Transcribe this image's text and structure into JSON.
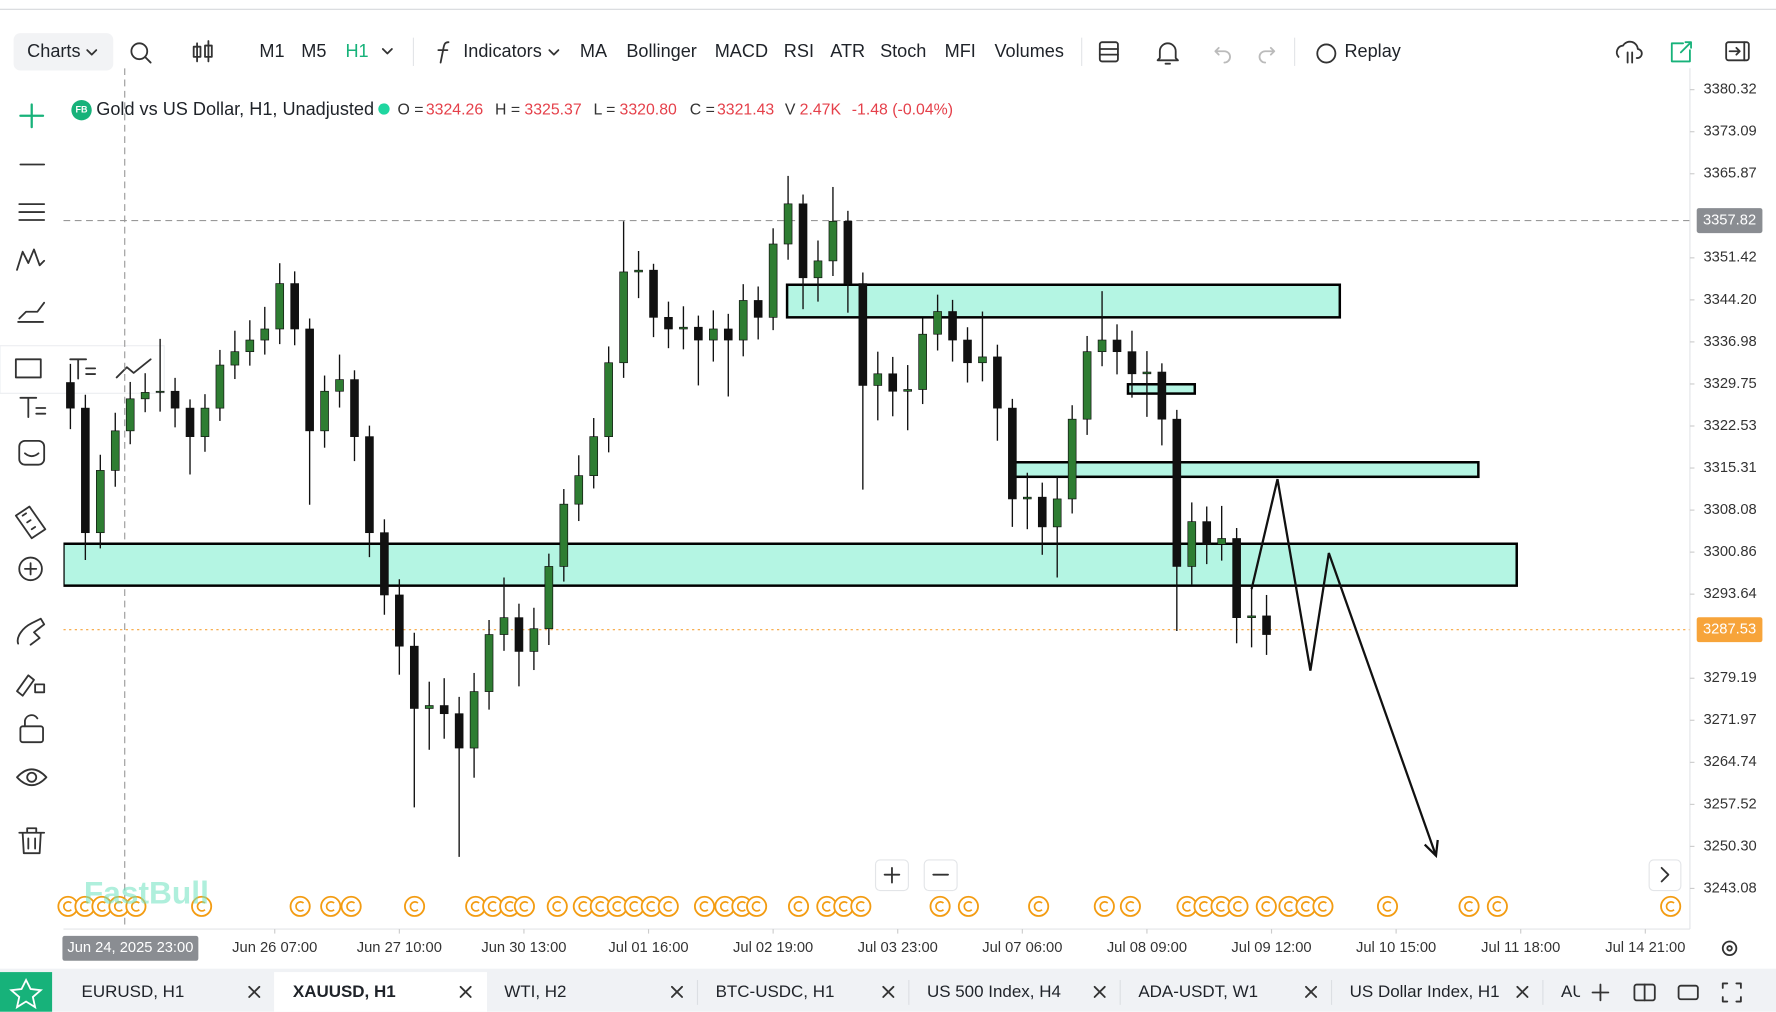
{
  "toolbar": {
    "charts": "Charts",
    "intervals": [
      "M1",
      "M5",
      "H1"
    ],
    "indicators": "Indicators",
    "studies": [
      "MA",
      "Bollinger",
      "MACD",
      "RSI",
      "ATR",
      "Stoch",
      "MFI",
      "Volumes"
    ],
    "replay": "Replay"
  },
  "legend": {
    "badge": "FB",
    "symbol": "Gold vs US Dollar, H1, Unadjusted",
    "o_label": "O =",
    "o": "3324.26",
    "h_label": "H =",
    "h": "3325.37",
    "l_label": "L =",
    "l": "3320.80",
    "c_label": "C =",
    "c": "3321.43",
    "v_label": "V",
    "v": "2.47K",
    "change": "-1.48 (-0.04%)"
  },
  "watermark": "FastBull",
  "chart_data": {
    "type": "candlestick",
    "up_color": "#2e7d32",
    "down_color": "#111111",
    "x": [
      -12,
      -9,
      -6,
      -3,
      0,
      3,
      6,
      9,
      12,
      15,
      18,
      21,
      24,
      27,
      30,
      33,
      36,
      39,
      42,
      45,
      48,
      51,
      54,
      57,
      60,
      63,
      66,
      69,
      72,
      75,
      78,
      81,
      84,
      87,
      90,
      93,
      96,
      99,
      102,
      105,
      108,
      111,
      114,
      117,
      120,
      123,
      126,
      129,
      132,
      135,
      138,
      141,
      144,
      147,
      150,
      153,
      156,
      159,
      162,
      165,
      168,
      171,
      174,
      177,
      180,
      183,
      186,
      189,
      192,
      195,
      198,
      201,
      204,
      207,
      210,
      213,
      216,
      219,
      222,
      225,
      228
    ],
    "open": [
      3330.0,
      3325.6,
      3304.2,
      3314.9,
      3321.7,
      3327.2,
      3328.3,
      3328.5,
      3325.6,
      3320.7,
      3325.6,
      3333.0,
      3335.3,
      3337.3,
      3339.2,
      3347.0,
      3339.2,
      3321.7,
      3328.5,
      3330.5,
      3320.7,
      3304.2,
      3293.5,
      3284.7,
      3274.0,
      3274.5,
      3273.1,
      3267.2,
      3276.9,
      3286.7,
      3289.6,
      3283.8,
      3287.7,
      3298.4,
      3309.1,
      3314.0,
      3320.7,
      3333.4,
      3349.0,
      3349.3,
      3341.2,
      3339.2,
      3339.5,
      3337.3,
      3339.2,
      3337.3,
      3344.1,
      3341.2,
      3353.8,
      3360.7,
      3348.0,
      3350.9,
      3357.7,
      3347.0,
      3329.5,
      3331.5,
      3328.5,
      3328.8,
      3338.3,
      3342.2,
      3337.3,
      3333.4,
      3334.4,
      3325.6,
      3310.0,
      3310.3,
      3305.2,
      3310.0,
      3323.7,
      3335.3,
      3337.3,
      3335.3,
      3331.5,
      3331.8,
      3323.7,
      3298.4,
      3306.1,
      3302.2,
      3303.2,
      3289.6,
      3289.9
    ],
    "high": [
      3333.2,
      3327.9,
      3317.6,
      3324.8,
      3330.1,
      3331.6,
      3337.5,
      3330.8,
      3327.1,
      3328.0,
      3335.6,
      3338.9,
      3340.7,
      3343.0,
      3350.5,
      3349.1,
      3341.0,
      3331.2,
      3334.8,
      3332.1,
      3322.6,
      3306.5,
      3296.2,
      3287.0,
      3278.6,
      3279.2,
      3276.0,
      3280.1,
      3289.2,
      3296.5,
      3292.0,
      3291.3,
      3300.6,
      3311.7,
      3317.5,
      3323.9,
      3336.2,
      3357.7,
      3352.6,
      3350.4,
      3343.9,
      3343.1,
      3341.5,
      3342.4,
      3341.8,
      3346.9,
      3346.5,
      3356.5,
      3365.5,
      3362.3,
      3354.4,
      3363.6,
      3359.5,
      3348.9,
      3335.3,
      3334.4,
      3333.0,
      3341.0,
      3345.1,
      3344.2,
      3339.5,
      3342.2,
      3336.5,
      3327.2,
      3314.5,
      3312.8,
      3313.8,
      3326.1,
      3338.0,
      3345.7,
      3340.0,
      3338.9,
      3335.4,
      3333.3,
      3325.3,
      3309.4,
      3308.7,
      3308.8,
      3305.0,
      3294.6,
      3293.5
    ],
    "low": [
      3322.0,
      3299.5,
      3301.5,
      3312.1,
      3319.4,
      3324.9,
      3325.0,
      3322.3,
      3314.2,
      3318.1,
      3323.4,
      3330.6,
      3332.9,
      3334.8,
      3336.6,
      3336.4,
      3309.0,
      3318.8,
      3325.7,
      3316.5,
      3300.0,
      3290.1,
      3279.8,
      3257.0,
      3266.9,
      3268.8,
      3248.5,
      3262.1,
      3273.8,
      3283.9,
      3277.8,
      3280.6,
      3284.9,
      3295.8,
      3306.2,
      3311.8,
      3318.0,
      3330.8,
      3344.5,
      3337.8,
      3335.9,
      3335.7,
      3329.5,
      3333.6,
      3327.6,
      3334.5,
      3337.4,
      3339.0,
      3351.1,
      3342.6,
      3343.9,
      3348.3,
      3342.0,
      3311.6,
      3323.5,
      3324.2,
      3321.8,
      3326.3,
      3335.5,
      3333.6,
      3330.0,
      3330.2,
      3320.0,
      3305.2,
      3304.8,
      3300.4,
      3296.5,
      3307.5,
      3321.0,
      3332.8,
      3331.4,
      3327.4,
      3324.1,
      3319.2,
      3287.3,
      3295.2,
      3298.8,
      3299.4,
      3285.2,
      3284.5,
      3283.2
    ],
    "close": [
      3325.6,
      3304.2,
      3314.9,
      3321.7,
      3327.2,
      3328.3,
      3328.5,
      3325.6,
      3320.7,
      3325.6,
      3333.0,
      3335.3,
      3337.3,
      3339.2,
      3347.0,
      3339.2,
      3321.7,
      3328.5,
      3330.5,
      3320.7,
      3304.2,
      3293.5,
      3284.7,
      3274.0,
      3274.5,
      3273.1,
      3267.2,
      3276.9,
      3286.7,
      3289.6,
      3283.8,
      3287.7,
      3298.4,
      3309.1,
      3314.0,
      3320.7,
      3333.4,
      3349.0,
      3349.3,
      3341.2,
      3339.2,
      3339.5,
      3337.3,
      3339.2,
      3337.3,
      3344.1,
      3341.2,
      3353.8,
      3360.7,
      3348.0,
      3350.9,
      3357.7,
      3347.0,
      3329.5,
      3331.5,
      3328.5,
      3328.8,
      3338.3,
      3342.2,
      3337.3,
      3333.4,
      3334.4,
      3325.6,
      3310.0,
      3310.3,
      3305.2,
      3310.0,
      3323.7,
      3335.3,
      3337.3,
      3335.3,
      3331.5,
      3331.8,
      3323.7,
      3298.4,
      3306.1,
      3302.2,
      3303.2,
      3289.6,
      3289.9,
      3286.7
    ],
    "xlim": [
      -13.4,
      312.95
    ],
    "ylim": [
      3236.1,
      3384.0
    ],
    "xticks": [
      {
        "value": 29,
        "label": "Jun 26 07:00"
      },
      {
        "value": 54,
        "label": "Jun 27 10:00"
      },
      {
        "value": 79,
        "label": "Jun 30 13:00"
      },
      {
        "value": 104,
        "label": "Jul 01 16:00"
      },
      {
        "value": 129,
        "label": "Jul 02 19:00"
      },
      {
        "value": 154,
        "label": "Jul 03 23:00"
      },
      {
        "value": 179,
        "label": "Jul 07 06:00"
      },
      {
        "value": 204,
        "label": "Jul 08 09:00"
      },
      {
        "value": 229,
        "label": "Jul 09 12:00"
      },
      {
        "value": 254,
        "label": "Jul 10 15:00"
      },
      {
        "value": 279,
        "label": "Jul 11 18:00"
      },
      {
        "value": 304,
        "label": "Jul 14 21:00"
      }
    ],
    "yticks": [
      3380.32,
      3373.09,
      3365.87,
      3351.42,
      {
        "value": 3344.2,
        "label": "3344.20"
      },
      3336.98,
      3329.75,
      3322.53,
      3315.31,
      3308.08,
      3300.86,
      3293.64,
      3279.19,
      3271.97,
      3264.74,
      3257.52,
      {
        "value": 3250.3,
        "label": "3250.30"
      },
      3243.08
    ],
    "zones": [
      {
        "x": [
          131.8,
          242.7
        ],
        "y": [
          3346.8,
          3341.2
        ]
      },
      {
        "x": [
          200.2,
          213.6
        ],
        "y": [
          3329.7,
          3328.1
        ]
      },
      {
        "x": [
          177.0,
          270.5
        ],
        "y": [
          3316.3,
          3313.8
        ]
      },
      {
        "x": [
          -13.4,
          278.2
        ],
        "y": [
          3302.3,
          3295.1
        ]
      }
    ],
    "zone_color": "#b4f5e3",
    "arrow": {
      "x": [
        225,
        230.2,
        236.8,
        240.5,
        262.0
      ],
      "y": [
        3294.5,
        3313.4,
        3280.5,
        3300.7,
        3248.7
      ]
    },
    "crosshair": {
      "x": -1.1,
      "y": 3357.82,
      "x_label": "Jun 24, 2025 23:00"
    },
    "last_price": {
      "value": 3287.53,
      "color": "#f7a43a"
    }
  },
  "tabs": [
    {
      "label": "EURUSD, H1"
    },
    {
      "label": "XAUUSD, H1"
    },
    {
      "label": "WTI, H2"
    },
    {
      "label": "BTC-USDC, H1"
    },
    {
      "label": "US 500 Index, H4"
    },
    {
      "label": "ADA-USDT, W1"
    },
    {
      "label": "US Dollar Index, H1"
    },
    {
      "label": "AU"
    }
  ]
}
